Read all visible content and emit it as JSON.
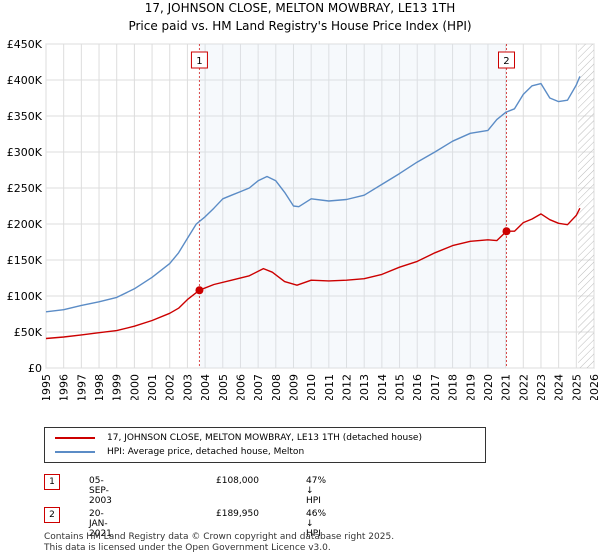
{
  "title_line1": "17, JOHNSON CLOSE, MELTON MOWBRAY, LE13 1TH",
  "title_line2": "Price paid vs. HM Land Registry's House Price Index (HPI)",
  "chart_data": {
    "type": "line",
    "title": "17, JOHNSON CLOSE, MELTON MOWBRAY, LE13 1TH — Price paid vs. HM Land Registry's House Price Index (HPI)",
    "xlim": [
      1995,
      2026
    ],
    "ylim": [
      0,
      450000
    ],
    "x_ticks": [
      "1995",
      "1996",
      "1997",
      "1998",
      "1999",
      "2000",
      "2001",
      "2002",
      "2003",
      "2004",
      "2005",
      "2006",
      "2007",
      "2008",
      "2009",
      "2010",
      "2011",
      "2012",
      "2013",
      "2014",
      "2015",
      "2016",
      "2017",
      "2018",
      "2019",
      "2020",
      "2021",
      "2022",
      "2023",
      "2024",
      "2025",
      "2026"
    ],
    "y_ticks": [
      {
        "value": 0,
        "label": "£0"
      },
      {
        "value": 50000,
        "label": "£50K"
      },
      {
        "value": 100000,
        "label": "£100K"
      },
      {
        "value": 150000,
        "label": "£150K"
      },
      {
        "value": 200000,
        "label": "£200K"
      },
      {
        "value": 250000,
        "label": "£250K"
      },
      {
        "value": 300000,
        "label": "£300K"
      },
      {
        "value": 350000,
        "label": "£350K"
      },
      {
        "value": 400000,
        "label": "£400K"
      },
      {
        "value": 450000,
        "label": "£450K"
      }
    ],
    "series": [
      {
        "name": "17, JOHNSON CLOSE, MELTON MOWBRAY, LE13 1TH (detached house)",
        "color": "#cc0000",
        "x": [
          1995.0,
          1996.0,
          1997.0,
          1998.0,
          1999.0,
          2000.0,
          2001.0,
          2002.0,
          2002.5,
          2003.0,
          2003.68,
          2004.5,
          2005.5,
          2006.5,
          2007.3,
          2007.8,
          2008.5,
          2009.2,
          2010.0,
          2011.0,
          2012.0,
          2013.0,
          2014.0,
          2015.0,
          2016.0,
          2017.0,
          2018.0,
          2019.0,
          2020.0,
          2020.5,
          2021.05,
          2021.5,
          2022.0,
          2022.5,
          2023.0,
          2023.5,
          2024.0,
          2024.5,
          2025.0,
          2025.2
        ],
        "values": [
          41000,
          43000,
          46000,
          49000,
          52000,
          58000,
          66000,
          76000,
          83000,
          95000,
          108000,
          116000,
          122000,
          128000,
          138000,
          133000,
          120000,
          115000,
          122000,
          121000,
          122000,
          124000,
          130000,
          140000,
          148000,
          160000,
          170000,
          176000,
          178000,
          177000,
          189950,
          190000,
          202000,
          207000,
          214000,
          206000,
          201000,
          199000,
          212000,
          222000
        ]
      },
      {
        "name": "HPI: Average price, detached house, Melton",
        "color": "#5b8cc6",
        "x": [
          1995.0,
          1996.0,
          1997.0,
          1998.0,
          1999.0,
          2000.0,
          2001.0,
          2002.0,
          2002.5,
          2003.0,
          2003.5,
          2004.0,
          2004.5,
          2005.0,
          2005.5,
          2006.0,
          2006.5,
          2007.0,
          2007.5,
          2008.0,
          2008.5,
          2009.0,
          2009.3,
          2010.0,
          2011.0,
          2012.0,
          2013.0,
          2014.0,
          2015.0,
          2016.0,
          2017.0,
          2018.0,
          2019.0,
          2020.0,
          2020.5,
          2021.0,
          2021.5,
          2022.0,
          2022.5,
          2023.0,
          2023.5,
          2024.0,
          2024.5,
          2025.0,
          2025.2
        ],
        "values": [
          78000,
          81000,
          87000,
          92000,
          98000,
          110000,
          126000,
          145000,
          160000,
          180000,
          200000,
          210000,
          222000,
          235000,
          240000,
          245000,
          250000,
          260000,
          266000,
          260000,
          244000,
          225000,
          224000,
          235000,
          232000,
          234000,
          240000,
          255000,
          270000,
          286000,
          300000,
          315000,
          326000,
          330000,
          345000,
          355000,
          360000,
          380000,
          392000,
          395000,
          375000,
          370000,
          372000,
          393000,
          405000
        ]
      }
    ],
    "annotations": [
      {
        "label": "1",
        "x": 2003.68
      },
      {
        "label": "2",
        "x": 2021.05
      }
    ]
  },
  "legend": {
    "property": "17, JOHNSON CLOSE, MELTON MOWBRAY, LE13 1TH (detached house)",
    "hpi": "HPI: Average price, detached house, Melton"
  },
  "sales": [
    {
      "num": "1",
      "date": "05-SEP-2003",
      "price": "£108,000",
      "hpi": "47% ↓ HPI"
    },
    {
      "num": "2",
      "date": "20-JAN-2021",
      "price": "£189,950",
      "hpi": "46% ↓ HPI"
    }
  ],
  "footer_line1": "Contains HM Land Registry data © Crown copyright and database right 2025.",
  "footer_line2": "This data is licensed under the Open Government Licence v3.0.",
  "colors": {
    "property": "#cc0000",
    "hpi": "#5b8cc6",
    "grid": "#dddddd",
    "shade": "#dbe6f3"
  }
}
